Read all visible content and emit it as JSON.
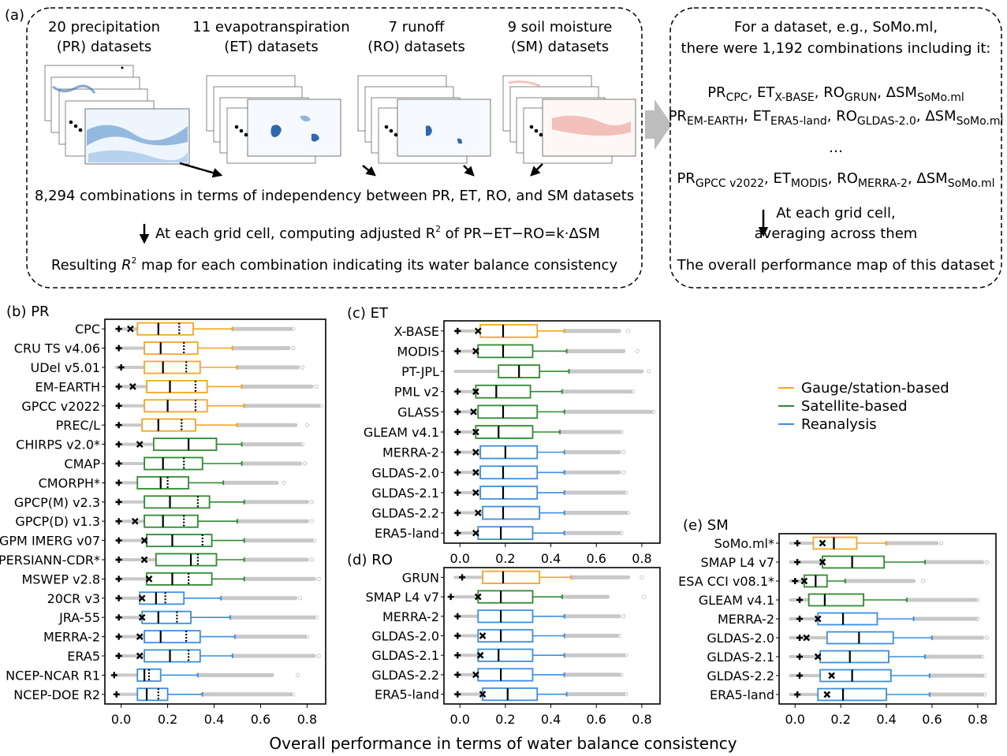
{
  "panel_a": {
    "label": "(a)",
    "datasets": [
      {
        "line1": "20 precipitation",
        "line2": "(PR) datasets"
      },
      {
        "line1": "11 evapotranspiration",
        "line2": "(ET) datasets"
      },
      {
        "line1": "7 runoff",
        "line2": "(RO) datasets"
      },
      {
        "line1": "9 soil moisture",
        "line2": "(SM) datasets"
      }
    ],
    "combos": "8,294 combinations in terms of independency between PR, ET, RO, and SM datasets",
    "step_pre": "At each grid cell, computing adjusted R",
    "step_sup": "2",
    "step_post": " of PR−ET−RO=k·ΔSM",
    "result_pre": "Resulting ",
    "result_r": "R",
    "result_sup": "2",
    "result_post": " map for each combination indicating its water balance consistency",
    "right_line1": "For a dataset, e.g., SoMo.ml,",
    "right_line2": "there were 1,192 combinations including it:",
    "formulas": [
      [
        [
          "PR",
          "CPC"
        ],
        [
          "ET",
          "X-BASE"
        ],
        [
          "RO",
          "GRUN"
        ],
        [
          "ΔSM",
          "SoMo.ml"
        ]
      ],
      [
        [
          "PR",
          "EM-EARTH"
        ],
        [
          "ET",
          "ERA5-land"
        ],
        [
          "RO",
          "GLDAS-2.0"
        ],
        [
          "ΔSM",
          "SoMo.ml"
        ]
      ],
      [
        [
          "PR",
          "GPCC v2022"
        ],
        [
          "ET",
          "MODIS"
        ],
        [
          "RO",
          "MERRA-2"
        ],
        [
          "ΔSM",
          "SoMo.ml"
        ]
      ]
    ],
    "ellipsis": "…",
    "avg_line1": "At each grid cell,",
    "avg_line2": "averaging across them",
    "overall": "The overall performance map of this dataset"
  },
  "legend": [
    {
      "label": "Gauge/station-based",
      "color": "#f5a623"
    },
    {
      "label": "Satellite-based",
      "color": "#2e8b2e"
    },
    {
      "label": "Reanalysis",
      "color": "#3a8fe0"
    }
  ],
  "x_axis_label": "Overall performance in terms of water balance consistency",
  "chart_data": [
    {
      "panel": "(b) PR",
      "type": "box",
      "xlim": [
        -0.07,
        0.88
      ],
      "ticks": [
        "0.0",
        "0.2",
        "0.4",
        "0.6",
        "0.8"
      ],
      "categories": [
        "CPC",
        "CRU TS v4.06",
        "UDel v5.01",
        "EM-EARTH",
        "GPCC v2022",
        "PREC/L",
        "CHIRPS v2.0*",
        "CMAP",
        "CMORPH*",
        "GPCP(M) v2.3",
        "GPCP(D) v1.3",
        "GPM IMERG v07",
        "PERSIANN-CDR*",
        "MSWEP v2.8",
        "20CR v3",
        "JRA-55",
        "MERRA-2",
        "ERA5",
        "NCEP-NCAR R1",
        "NCEP-DOE R2"
      ],
      "groups": [
        "gauge",
        "gauge",
        "gauge",
        "gauge",
        "gauge",
        "gauge",
        "satellite",
        "satellite",
        "satellite",
        "satellite",
        "satellite",
        "satellite",
        "satellite",
        "satellite",
        "reanalysis",
        "reanalysis",
        "reanalysis",
        "reanalysis",
        "reanalysis",
        "reanalysis"
      ],
      "plus": [
        -0.01,
        -0.01,
        0.0,
        -0.01,
        -0.01,
        -0.01,
        -0.01,
        -0.01,
        -0.01,
        -0.01,
        -0.01,
        -0.01,
        -0.01,
        -0.01,
        -0.01,
        -0.01,
        -0.01,
        -0.01,
        -0.03,
        -0.02
      ],
      "cross": [
        0.04,
        null,
        null,
        0.05,
        null,
        null,
        0.08,
        null,
        null,
        null,
        0.06,
        0.1,
        0.1,
        0.12,
        0.09,
        0.09,
        0.08,
        0.08,
        null,
        null
      ],
      "q1": [
        0.07,
        0.1,
        0.1,
        0.11,
        0.1,
        0.09,
        0.14,
        0.1,
        0.07,
        0.1,
        0.1,
        0.11,
        0.15,
        0.11,
        0.08,
        0.09,
        0.1,
        0.1,
        0.07,
        0.07
      ],
      "median": [
        0.16,
        0.17,
        0.18,
        0.21,
        0.2,
        0.16,
        0.29,
        0.18,
        0.17,
        0.21,
        0.18,
        0.22,
        0.3,
        0.22,
        0.15,
        0.16,
        0.17,
        0.21,
        0.1,
        0.11
      ],
      "mean": [
        0.25,
        0.27,
        0.28,
        0.32,
        0.32,
        0.26,
        null,
        0.27,
        0.2,
        0.33,
        0.27,
        0.35,
        0.33,
        0.29,
        0.19,
        0.24,
        0.28,
        0.29,
        0.12,
        0.16
      ],
      "q3": [
        0.31,
        0.33,
        0.34,
        0.37,
        0.37,
        0.32,
        0.41,
        0.35,
        0.29,
        0.38,
        0.33,
        0.39,
        0.41,
        0.39,
        0.27,
        0.3,
        0.34,
        0.34,
        0.17,
        0.2
      ],
      "whisker_hi": [
        0.48,
        0.48,
        0.5,
        0.52,
        0.53,
        0.5,
        0.52,
        0.52,
        0.44,
        0.53,
        0.5,
        0.53,
        0.53,
        0.53,
        0.43,
        0.47,
        0.49,
        0.48,
        0.33,
        0.35
      ],
      "tail_hi": [
        0.73,
        0.72,
        0.76,
        0.82,
        0.85,
        0.75,
        0.77,
        0.77,
        0.67,
        0.8,
        0.8,
        0.82,
        0.8,
        0.83,
        0.75,
        0.83,
        0.79,
        0.83,
        0.65,
        0.73
      ],
      "outlier": [
        0.74,
        0.74,
        0.78,
        0.84,
        0.86,
        0.8,
        0.78,
        0.79,
        0.7,
        0.82,
        0.82,
        0.83,
        0.82,
        0.85,
        0.77,
        0.84,
        0.8,
        0.85,
        0.76,
        0.74
      ]
    },
    {
      "panel": "(c) ET",
      "type": "box",
      "xlim": [
        -0.07,
        0.88
      ],
      "ticks": [
        "0.0",
        "0.2",
        "0.4",
        "0.6",
        "0.8"
      ],
      "categories": [
        "X-BASE",
        "MODIS",
        "PT-JPL",
        "PML v2",
        "GLASS",
        "GLEAM v4.1",
        "MERRA-2",
        "GLDAS-2.0",
        "GLDAS-2.1",
        "GLDAS-2.2",
        "ERA5-land"
      ],
      "groups": [
        "gauge",
        "satellite",
        "satellite",
        "satellite",
        "satellite",
        "satellite",
        "reanalysis",
        "reanalysis",
        "reanalysis",
        "reanalysis",
        "reanalysis"
      ],
      "plus": [
        -0.01,
        -0.01,
        null,
        -0.01,
        -0.01,
        -0.01,
        -0.01,
        -0.01,
        -0.01,
        -0.01,
        -0.01
      ],
      "cross": [
        0.08,
        0.07,
        null,
        0.07,
        0.06,
        0.07,
        0.07,
        0.07,
        0.07,
        0.08,
        0.07
      ],
      "q1": [
        0.09,
        0.08,
        0.17,
        0.07,
        0.08,
        0.07,
        0.09,
        0.09,
        0.09,
        0.1,
        0.08
      ],
      "median": [
        0.19,
        0.19,
        0.26,
        0.16,
        0.19,
        0.17,
        0.2,
        0.19,
        0.19,
        0.19,
        0.18
      ],
      "mean": [
        null,
        null,
        null,
        null,
        null,
        null,
        null,
        null,
        null,
        null,
        null
      ],
      "q3": [
        0.34,
        0.32,
        0.35,
        0.31,
        0.34,
        0.32,
        0.34,
        0.34,
        0.34,
        0.35,
        0.32
      ],
      "whisker_hi": [
        0.46,
        0.47,
        0.48,
        0.45,
        0.46,
        0.44,
        0.46,
        0.46,
        0.46,
        0.46,
        0.46
      ],
      "tail_hi": [
        0.7,
        0.72,
        0.8,
        0.75,
        0.84,
        0.7,
        0.7,
        0.7,
        0.72,
        0.73,
        0.7
      ],
      "outlier": [
        0.74,
        0.78,
        0.83,
        0.76,
        0.85,
        0.71,
        0.72,
        0.72,
        0.73,
        0.74,
        0.71
      ]
    },
    {
      "panel": "(d) RO",
      "type": "box",
      "xlim": [
        -0.07,
        0.88
      ],
      "ticks": [
        "0.0",
        "0.2",
        "0.4",
        "0.6",
        "0.8"
      ],
      "categories": [
        "GRUN",
        "SMAP L4 v7",
        "MERRA-2",
        "GLDAS-2.0",
        "GLDAS-2.1",
        "GLDAS-2.2",
        "ERA5-land"
      ],
      "groups": [
        "gauge",
        "satellite",
        "reanalysis",
        "reanalysis",
        "reanalysis",
        "reanalysis",
        "reanalysis"
      ],
      "plus": [
        0.01,
        -0.04,
        -0.01,
        -0.01,
        -0.01,
        -0.01,
        -0.01
      ],
      "cross": [
        null,
        0.08,
        null,
        0.1,
        0.09,
        0.07,
        0.1
      ],
      "q1": [
        0.1,
        0.08,
        0.08,
        0.08,
        0.08,
        0.08,
        0.1
      ],
      "median": [
        0.19,
        0.18,
        0.18,
        0.18,
        0.17,
        0.18,
        0.21
      ],
      "mean": [
        null,
        null,
        null,
        null,
        null,
        null,
        null
      ],
      "q3": [
        0.35,
        0.32,
        0.32,
        0.32,
        0.32,
        0.32,
        0.34
      ],
      "whisker_hi": [
        0.49,
        0.45,
        0.46,
        0.46,
        0.46,
        0.46,
        0.47
      ],
      "tail_hi": [
        0.74,
        0.65,
        0.7,
        0.69,
        0.72,
        0.7,
        0.72
      ],
      "outlier": [
        0.8,
        0.81,
        0.72,
        0.7,
        0.73,
        0.71,
        0.73
      ]
    },
    {
      "panel": "(e) SM",
      "type": "box",
      "xlim": [
        -0.07,
        0.88
      ],
      "ticks": [
        "0.0",
        "0.2",
        "0.4",
        "0.6",
        "0.8"
      ],
      "categories": [
        "SoMo.ml*",
        "SMAP L4 v7",
        "ESA CCI v08.1*",
        "GLEAM v4.1",
        "MERRA-2",
        "GLDAS-2.0",
        "GLDAS-2.1",
        "GLDAS-2.2",
        "ERA5-land"
      ],
      "groups": [
        "gauge",
        "satellite",
        "satellite",
        "satellite",
        "reanalysis",
        "reanalysis",
        "reanalysis",
        "reanalysis",
        "reanalysis"
      ],
      "plus": [
        0.01,
        0.01,
        0.0,
        0.02,
        0.02,
        0.02,
        0.02,
        0.02,
        0.01
      ],
      "cross": [
        0.12,
        0.12,
        0.04,
        null,
        0.1,
        0.05,
        0.1,
        0.16,
        0.14
      ],
      "q1": [
        0.08,
        0.12,
        0.04,
        0.06,
        0.1,
        0.14,
        0.11,
        0.11,
        0.1
      ],
      "median": [
        0.17,
        0.25,
        0.09,
        0.13,
        0.21,
        0.28,
        0.24,
        0.25,
        0.21
      ],
      "mean": [
        null,
        null,
        null,
        null,
        null,
        null,
        null,
        null,
        null
      ],
      "q3": [
        0.27,
        0.39,
        0.14,
        0.3,
        0.36,
        0.43,
        0.41,
        0.42,
        0.4
      ],
      "whisker_hi": [
        0.4,
        0.57,
        0.22,
        0.49,
        0.52,
        0.6,
        0.57,
        0.59,
        0.59
      ],
      "tail_hi": [
        0.62,
        0.82,
        0.52,
        0.79,
        0.79,
        0.82,
        0.81,
        0.82,
        0.82
      ],
      "outlier": [
        0.64,
        0.84,
        0.56,
        0.8,
        0.8,
        0.84,
        0.82,
        0.83,
        0.83
      ]
    }
  ]
}
